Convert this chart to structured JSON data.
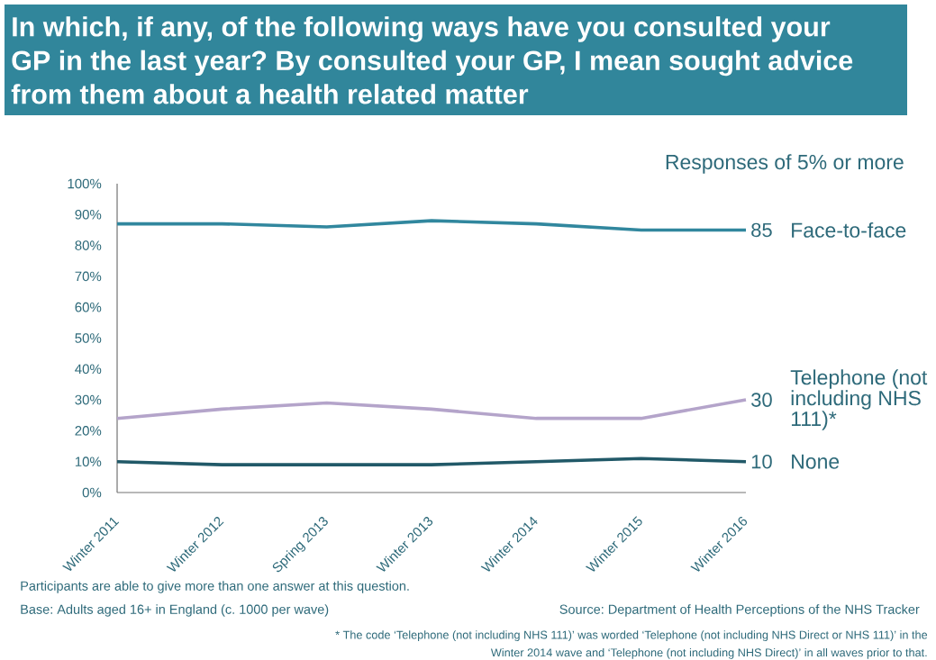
{
  "chart_data": {
    "type": "line",
    "title": "In which, if any, of the following ways have you consulted your GP in the last year? By consulted your GP, I mean sought advice from them about a health related matter",
    "subtitle": "Responses of 5% or more",
    "categories": [
      "Winter 2011",
      "Winter 2012",
      "Spring 2013",
      "Winter 2013",
      "Winter 2014",
      "Winter 2015",
      "Winter 2016"
    ],
    "ylim": [
      0,
      100
    ],
    "yticks": [
      {
        "value": 0,
        "label": "0%"
      },
      {
        "value": 10,
        "label": "10%"
      },
      {
        "value": 20,
        "label": "20%"
      },
      {
        "value": 30,
        "label": "30%"
      },
      {
        "value": 40,
        "label": "40%"
      },
      {
        "value": 50,
        "label": "50%"
      },
      {
        "value": 60,
        "label": "60%"
      },
      {
        "value": 70,
        "label": "70%"
      },
      {
        "value": 80,
        "label": "80%"
      },
      {
        "value": 90,
        "label": "90%"
      },
      {
        "value": 100,
        "label": "100%"
      }
    ],
    "series": [
      {
        "name": "Face-to-face",
        "color": "#31879e",
        "values": [
          87,
          87,
          86,
          88,
          87,
          85,
          85
        ],
        "value_labels": [
          null,
          null,
          null,
          null,
          null,
          null,
          "85"
        ]
      },
      {
        "name": "Telephone (not including NHS 111)*",
        "color": "#b4a4ca",
        "values": [
          24,
          27,
          29,
          27,
          24,
          24,
          30
        ],
        "value_labels": [
          null,
          null,
          null,
          null,
          null,
          null,
          "30"
        ]
      },
      {
        "name": "None",
        "color": "#215968",
        "values": [
          10,
          9,
          9,
          9,
          10,
          11,
          10
        ],
        "value_labels": [
          null,
          null,
          null,
          null,
          null,
          null,
          "10"
        ]
      }
    ],
    "annotations": [
      "Participants are able to give more than one answer at this question.",
      "Base: Adults aged 16+ in England (c. 1000 per wave)",
      "Source: Department of Health Perceptions of the NHS Tracker",
      "* The code ‘Telephone (not including NHS 111)’ was worded ‘Telephone (not including NHS Direct or NHS 111)’ in the Winter 2014 wave and ‘Telephone (not including NHS Direct)’ in all waves prior to that."
    ]
  }
}
